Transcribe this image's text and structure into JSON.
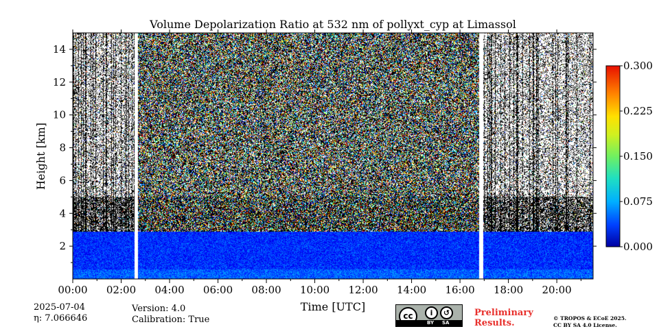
{
  "chart_data": {
    "type": "heatmap",
    "title": "Volume Depolarization Ratio at 532 nm of pollyxt_cyp at Limassol",
    "xlabel": "Time [UTC]",
    "ylabel": "Height [km]",
    "x_ticks": [
      "00:00",
      "02:00",
      "04:00",
      "06:00",
      "08:00",
      "10:00",
      "12:00",
      "14:00",
      "16:00",
      "18:00",
      "20:00"
    ],
    "x_tick_hours": [
      0,
      2,
      4,
      6,
      8,
      10,
      12,
      14,
      16,
      18,
      20
    ],
    "xlim_hours": [
      0,
      21.5
    ],
    "y_ticks": [
      "2",
      "4",
      "6",
      "8",
      "10",
      "12",
      "14"
    ],
    "y_tick_values": [
      2,
      4,
      6,
      8,
      10,
      12,
      14
    ],
    "ylim_km": [
      0,
      15
    ],
    "colorbar": {
      "min": 0.0,
      "max": 0.3,
      "ticks": [
        "0.000",
        "0.075",
        "0.150",
        "0.225",
        "0.300"
      ],
      "tick_values": [
        0.0,
        0.075,
        0.15,
        0.225,
        0.3
      ],
      "colormap": "jet"
    },
    "data_gaps_hours": [
      [
        2.55,
        2.7
      ],
      [
        16.8,
        16.95
      ]
    ],
    "boundary_layer_top_km": 2.9,
    "depol_below_boundary_layer": 0.05,
    "depol_aloft_noise": 0.15
  },
  "meta": {
    "date": "2025-07-04",
    "eta_label": "η: 7.066646",
    "version": "Version: 4.0",
    "calibration": "Calibration: True"
  },
  "badge": {
    "preliminary": "Preliminary",
    "results": "Results.",
    "license_line1": "© TROPOS & ECoE 2025.",
    "license_line2": "CC BY SA 4.0 License.",
    "cc_by": "BY",
    "cc_sa": "SA",
    "cc_text": "cc"
  }
}
